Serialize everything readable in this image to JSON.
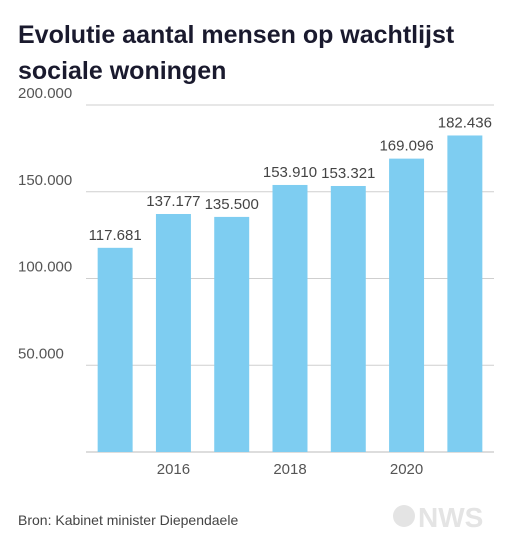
{
  "chart_data": {
    "type": "bar",
    "title": [
      "Evolutie aantal mensen op wachtlijst",
      "sociale woningen"
    ],
    "categories": [
      null,
      "2016",
      null,
      "2018",
      null,
      "2020",
      null
    ],
    "values": [
      117681,
      137177,
      135500,
      153910,
      153321,
      169096,
      182436
    ],
    "value_labels": [
      "117.681",
      "137.177",
      "135.500",
      "153.910",
      "153.321",
      "169.096",
      "182.436"
    ],
    "color": "#7ecdf1",
    "ylim": [
      0,
      200000
    ],
    "yticks": [
      {
        "value": 50000,
        "label": "50.000"
      },
      {
        "value": 100000,
        "label": "100.000"
      },
      {
        "value": 150000,
        "label": "150.000"
      },
      {
        "value": 200000,
        "label": "200.000"
      }
    ],
    "grid": true,
    "source": "Bron: Kabinet minister Diependaele",
    "logo": "NWS"
  }
}
